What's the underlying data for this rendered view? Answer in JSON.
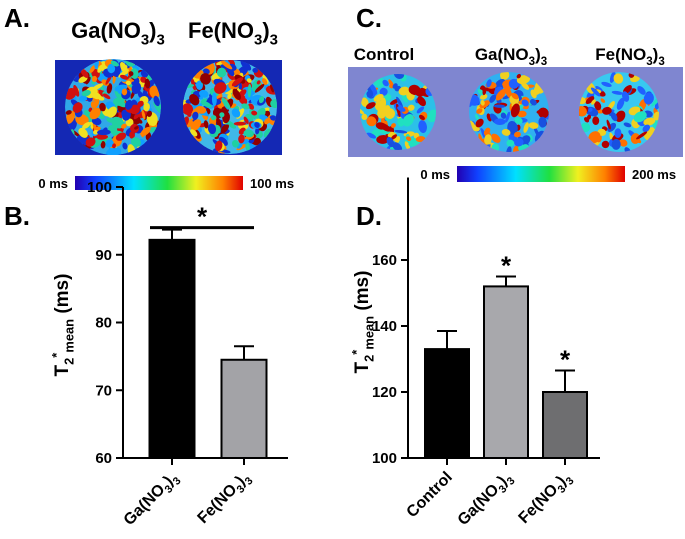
{
  "panels": [
    {
      "panel_label": "A.",
      "labels": [
        "Ga(NO3)3",
        "Fe(NO3)3"
      ],
      "colorbar": {
        "min_label": "0 ms",
        "max_label": "100 ms"
      }
    },
    {
      "panel_label": "C.",
      "labels": [
        "Control",
        "Ga(NO3)3",
        "Fe(NO3)3"
      ],
      "colorbar": {
        "min_label": "0 ms",
        "max_label": "200 ms"
      }
    }
  ],
  "chart_data": [
    {
      "type": "bar",
      "panel_label": "B.",
      "y_label": "T2*mean (ms)",
      "categories": [
        "Ga(NO3)3",
        "Fe(NO3)3"
      ],
      "values": [
        92.2,
        74.5
      ],
      "errors": [
        1.5,
        2.0
      ],
      "colors": [
        "#000000",
        "#a3a3a7"
      ],
      "ylim": [
        60,
        100
      ],
      "yticks": [
        60,
        70,
        80,
        90,
        100
      ],
      "annotations": [
        {
          "from": 0,
          "to": 1,
          "text": "*"
        }
      ]
    },
    {
      "type": "bar",
      "panel_label": "D.",
      "y_label": "T2*mean (ms)",
      "categories": [
        "Control",
        "Ga(NO3)3",
        "Fe(NO3)3"
      ],
      "values": [
        133,
        152,
        120
      ],
      "errors": [
        5.5,
        3,
        6.5
      ],
      "colors": [
        "#000000",
        "#a8a8ac",
        "#6e6e70"
      ],
      "ylim": [
        100,
        185
      ],
      "yticks": [
        100,
        120,
        140,
        160
      ],
      "annotations": [
        {
          "index": 1,
          "text": "*"
        },
        {
          "index": 2,
          "text": "*"
        }
      ]
    }
  ]
}
